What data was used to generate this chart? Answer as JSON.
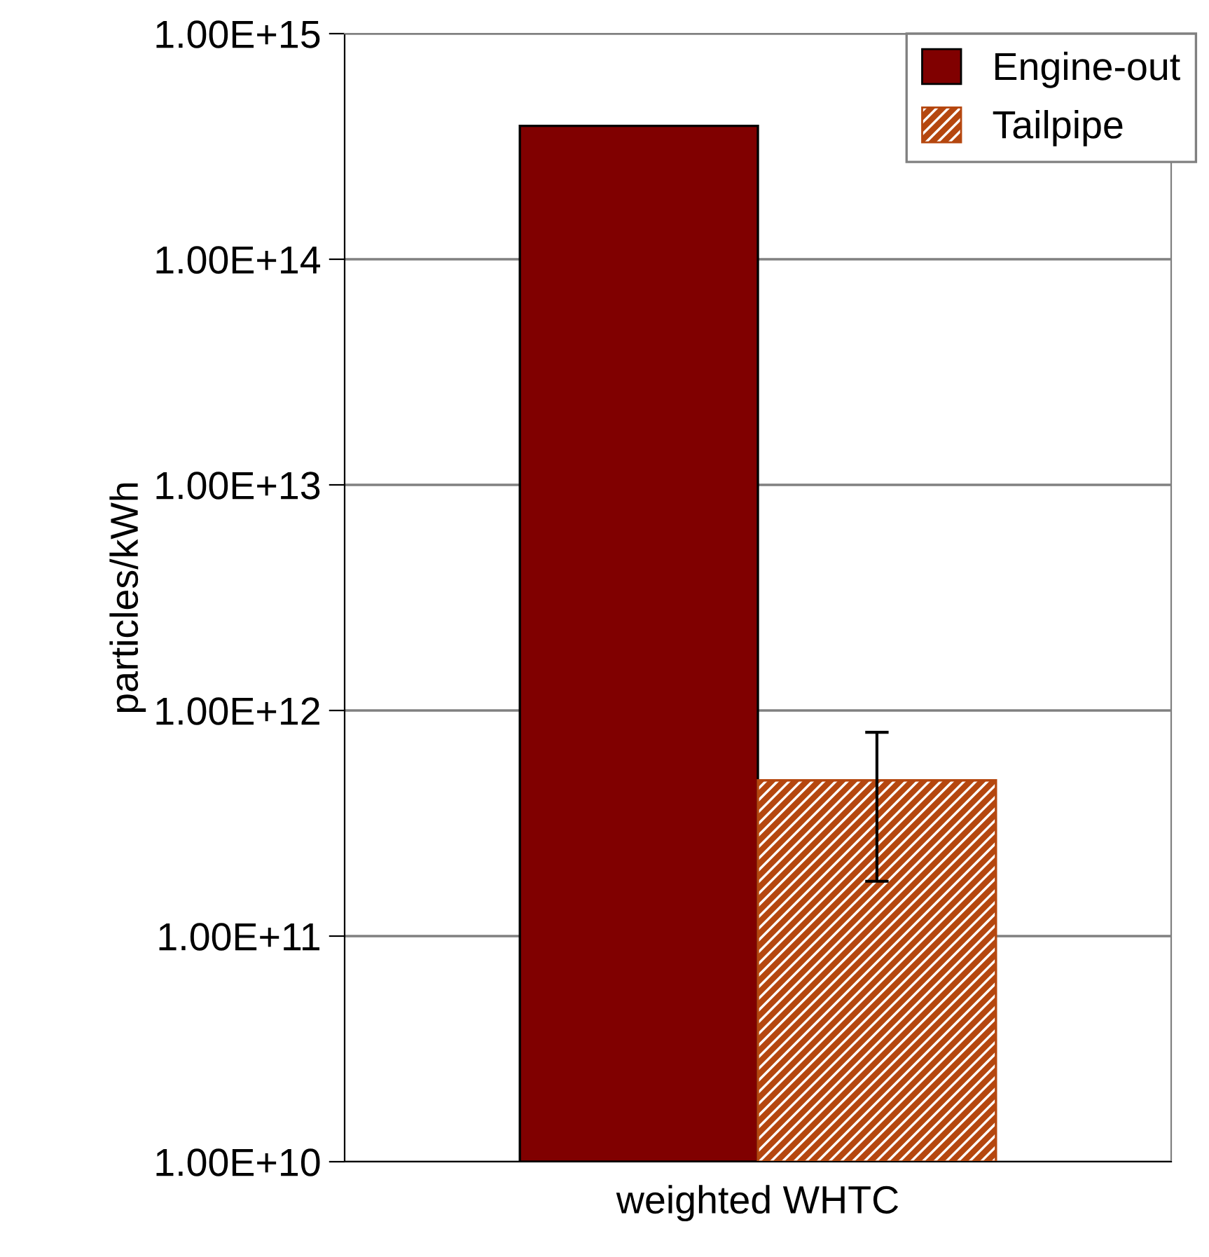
{
  "chart_data": {
    "type": "bar",
    "ylabel": "particles/kWh",
    "categories": [
      "weighted WHTC"
    ],
    "log": true,
    "series": [
      {
        "name": "Engine-out",
        "color": "#800000",
        "values": [
          390000000000000.0
        ]
      },
      {
        "name": "Tailpipe",
        "color": "#b5470f",
        "values": [
          480000000000.0
        ],
        "errors": [
          [
            175000000000.0,
            800000000000.0
          ]
        ]
      }
    ],
    "ylim": [
      10000000000.0,
      1000000000000000.0
    ],
    "yticks": [
      {
        "value": 10000000000.0,
        "label": "1.00E+10"
      },
      {
        "value": 100000000000.0,
        "label": "1.00E+11"
      },
      {
        "value": 1000000000000.0,
        "label": "1.00E+12"
      },
      {
        "value": 10000000000000.0,
        "label": "1.00E+13"
      },
      {
        "value": 100000000000000.0,
        "label": "1.00E+14"
      },
      {
        "value": 1000000000000000.0,
        "label": "1.00E+15"
      }
    ],
    "grid": "y",
    "legend": "top right"
  }
}
